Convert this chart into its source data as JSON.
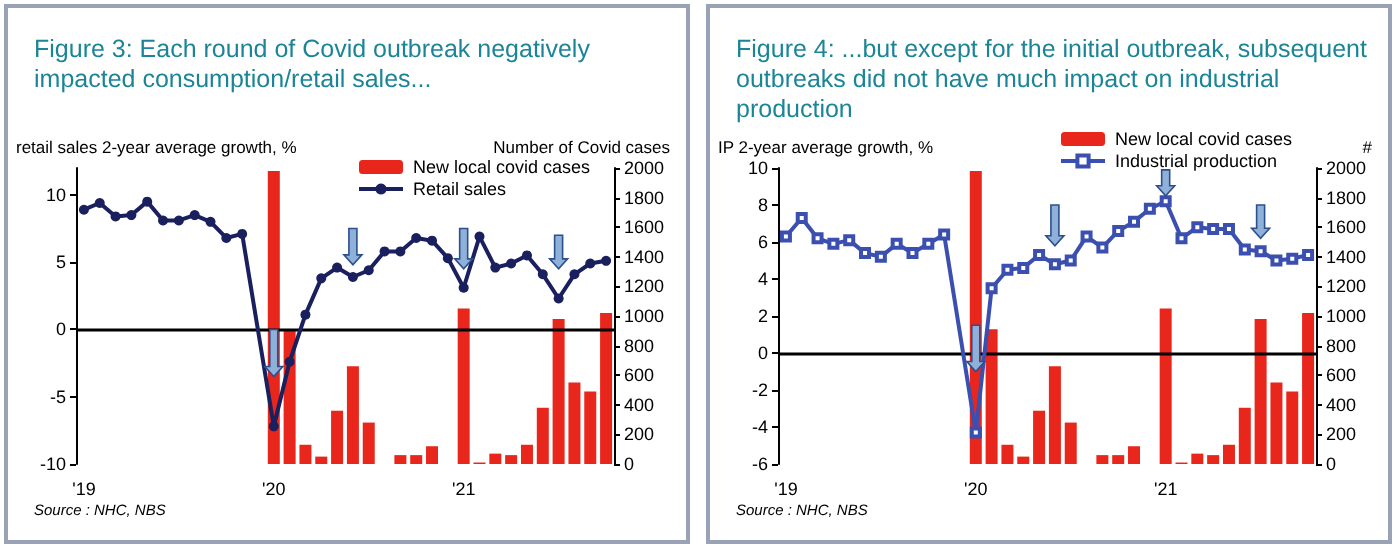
{
  "chart_data": [
    {
      "type": "bar",
      "title": "Figure 3: Each round of Covid outbreak negatively impacted consumption/retail sales...",
      "ylabel": "retail sales 2-year average growth, %",
      "y2label": "Number of Covid cases",
      "annotations": [
        "Source : NHC, NBS"
      ],
      "categories": [
        "'19",
        null,
        null,
        null,
        null,
        null,
        null,
        null,
        null,
        null,
        null,
        null,
        "'20",
        null,
        null,
        null,
        null,
        null,
        null,
        null,
        null,
        null,
        null,
        null,
        "'21",
        null,
        null,
        null,
        null,
        null,
        null,
        null,
        null,
        null
      ],
      "series": [
        {
          "name": "New local covid cases",
          "axis": "y2",
          "color": "#e8261b",
          "values": [
            null,
            null,
            null,
            null,
            null,
            null,
            null,
            null,
            null,
            null,
            null,
            null,
            1980,
            910,
            130,
            50,
            360,
            660,
            280,
            null,
            60,
            60,
            120,
            null,
            1050,
            10,
            70,
            60,
            130,
            380,
            980,
            550,
            490,
            1020
          ]
        },
        {
          "name": "Retail sales",
          "type": "line",
          "color": "#1a1f5e",
          "values": [
            8.9,
            9.4,
            8.4,
            8.5,
            9.5,
            8.1,
            8.1,
            8.5,
            8.0,
            6.8,
            7.1,
            null,
            -7.2,
            -2.4,
            1.1,
            3.8,
            4.6,
            3.9,
            4.4,
            5.8,
            5.8,
            6.8,
            6.6,
            5.3,
            3.1,
            6.9,
            4.6,
            4.9,
            5.5,
            4.1,
            2.3,
            4.1,
            4.9,
            5.1
          ]
        }
      ],
      "ylim": [
        -10,
        12
      ],
      "yticks": [
        -10,
        -5,
        0,
        5,
        10
      ],
      "y2lim": [
        0,
        2000
      ],
      "y2ticks": [
        0,
        200,
        400,
        600,
        800,
        1000,
        1200,
        1400,
        1600,
        1800,
        2000
      ],
      "legend": "top",
      "marker": "circle",
      "ref_lines": [
        {
          "axis": "y",
          "value": 0,
          "color": "#000000"
        }
      ]
    },
    {
      "type": "bar",
      "title": "Figure 4: ...but except for the initial outbreak, subsequent outbreaks did not have much impact on industrial production",
      "ylabel": "IP 2-year average growth, %",
      "y2label": "#",
      "annotations": [
        "Source : NHC, NBS"
      ],
      "categories": [
        "'19",
        null,
        null,
        null,
        null,
        null,
        null,
        null,
        null,
        null,
        null,
        null,
        "'20",
        null,
        null,
        null,
        null,
        null,
        null,
        null,
        null,
        null,
        null,
        null,
        "'21",
        null,
        null,
        null,
        null,
        null,
        null,
        null,
        null,
        null
      ],
      "series": [
        {
          "name": "New local covid cases",
          "axis": "y2",
          "color": "#e8261b",
          "values": [
            null,
            null,
            null,
            null,
            null,
            null,
            null,
            null,
            null,
            null,
            null,
            null,
            1980,
            910,
            130,
            50,
            360,
            660,
            280,
            null,
            60,
            60,
            120,
            null,
            1050,
            10,
            70,
            60,
            130,
            380,
            980,
            550,
            490,
            1020
          ]
        },
        {
          "name": "Industrial production",
          "type": "line",
          "color": "#3a4fb0",
          "values": [
            6.3,
            7.3,
            6.2,
            5.9,
            6.1,
            5.4,
            5.2,
            5.9,
            5.4,
            5.9,
            6.4,
            null,
            -4.3,
            3.5,
            4.5,
            4.6,
            5.3,
            4.8,
            5.0,
            6.3,
            5.7,
            6.6,
            7.1,
            7.8,
            8.2,
            6.2,
            6.8,
            6.7,
            6.7,
            5.6,
            5.5,
            5.0,
            5.1,
            5.3
          ]
        }
      ],
      "ylim": [
        -6,
        10
      ],
      "yticks": [
        -6,
        -4,
        -2,
        0,
        2,
        4,
        6,
        8,
        10
      ],
      "y2lim": [
        0,
        2000
      ],
      "y2ticks": [
        0,
        200,
        400,
        600,
        800,
        1000,
        1200,
        1400,
        1600,
        1800,
        2000
      ],
      "legend": "top",
      "marker": "square",
      "ref_lines": [
        {
          "axis": "y",
          "value": 0,
          "color": "#000000"
        }
      ]
    }
  ]
}
